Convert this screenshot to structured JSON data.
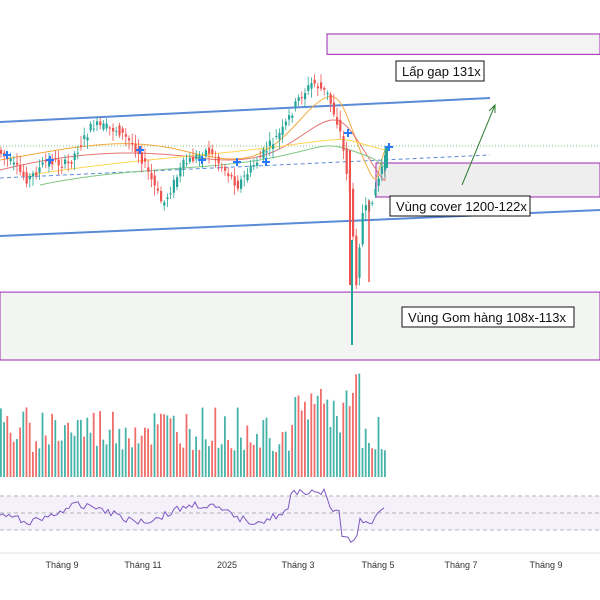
{
  "chart_data": {
    "type": "candlestick",
    "x_tick_labels": [
      "Tháng 9",
      "Tháng 11",
      "2025",
      "Tháng 3",
      "Tháng 5",
      "Tháng 7",
      "Tháng 9"
    ],
    "annotations": [
      {
        "label": "Lấp gap 131x",
        "y_top": 1320,
        "y_bottom": 1305
      },
      {
        "label": "Vùng cover 1200-122x",
        "y_top": 1225,
        "y_bottom": 1200
      },
      {
        "label": "Vùng Gom hàng 108x-113x",
        "y_top": 1130,
        "y_bottom": 1080
      }
    ],
    "y_range": [
      1080,
      1345
    ],
    "panels": [
      "price",
      "volume",
      "rsi"
    ],
    "colors": {
      "up": "#26a69a",
      "down": "#ef5350",
      "trendline": "#5b8bd8",
      "annotation_border": "#9c27b0",
      "rsi_line": "#7e57c2",
      "rsi_band": "#ede7f6",
      "signal_marker": "#2979ff"
    }
  }
}
